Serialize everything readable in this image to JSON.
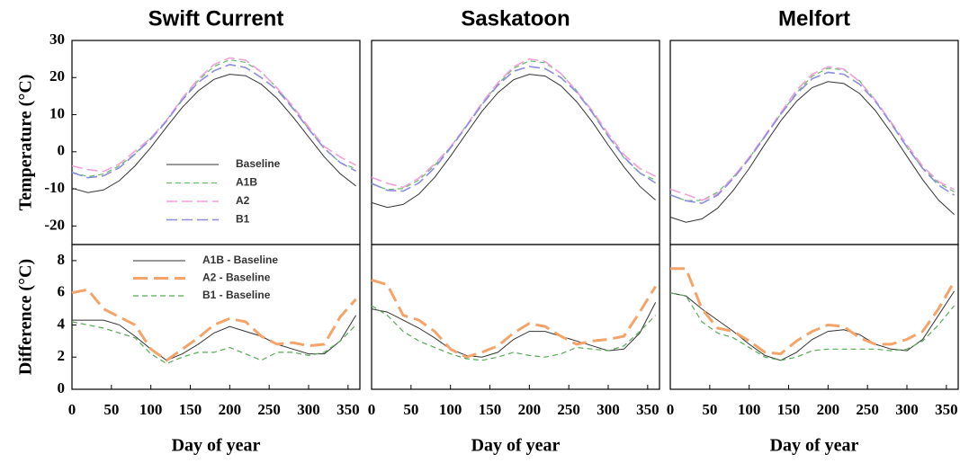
{
  "chart_data": [
    {
      "type": "line",
      "title": "Swift Current",
      "ylabel": "Temperature (°C)",
      "x": [
        0,
        20,
        40,
        60,
        80,
        100,
        120,
        140,
        160,
        180,
        200,
        220,
        240,
        260,
        280,
        300,
        320,
        340,
        360
      ],
      "xlim": [
        0,
        365
      ],
      "ylim": [
        -25,
        30
      ],
      "yticks": [
        -20,
        -10,
        0,
        10,
        20,
        30
      ],
      "legend": "lower-left",
      "series": [
        {
          "name": "Baseline",
          "color": "#333333",
          "style": "solid",
          "values": [
            -9.8,
            -11,
            -10.3,
            -7.8,
            -3.8,
            1.2,
            6.7,
            12,
            16.4,
            19.5,
            20.9,
            20.5,
            18.2,
            14.4,
            9.4,
            4,
            -1.4,
            -5.9,
            -9.2
          ]
        },
        {
          "name": "A1B",
          "color": "#66bb66",
          "style": "dashed",
          "values": [
            -5.5,
            -6.7,
            -6,
            -3.8,
            -0.5,
            3.7,
            8.5,
            14.2,
            19.2,
            23,
            24.8,
            24.1,
            21.5,
            17.2,
            11.9,
            6.2,
            0.8,
            -2.9,
            -4.6
          ]
        },
        {
          "name": "A2",
          "color": "#f0a0d8",
          "style": "long-dashed",
          "values": [
            -3.8,
            -4.8,
            -5.3,
            -3.3,
            0.2,
            3.7,
            8.5,
            14.5,
            19.6,
            23.5,
            25.3,
            24.7,
            21.5,
            17.2,
            12.3,
            6.7,
            1.4,
            -1.4,
            -3.6
          ]
        },
        {
          "name": "B1",
          "color": "#8c8ce0",
          "style": "long-dashed",
          "values": [
            -5.6,
            -7,
            -6.5,
            -4.3,
            -0.6,
            3.4,
            8.3,
            14,
            18.7,
            21.8,
            23.5,
            22.7,
            20,
            16.7,
            11.7,
            6.1,
            0.9,
            -2.9,
            -5.2
          ]
        }
      ]
    },
    {
      "type": "line",
      "title": "Saskatoon",
      "x": [
        0,
        20,
        40,
        60,
        80,
        100,
        120,
        140,
        160,
        180,
        200,
        220,
        240,
        260,
        280,
        300,
        320,
        340,
        360
      ],
      "xlim": [
        0,
        365
      ],
      "ylim": [
        -25,
        30
      ],
      "series": [
        {
          "color": "#333333",
          "style": "solid",
          "values": [
            -13.7,
            -15,
            -14.2,
            -11.4,
            -6.9,
            -1.2,
            4.9,
            10.9,
            15.9,
            19.4,
            20.9,
            20.4,
            17.8,
            13.5,
            8,
            1.8,
            -4.1,
            -9.3,
            -13
          ]
        },
        {
          "color": "#66bb66",
          "style": "dashed",
          "values": [
            -8.7,
            -10.2,
            -9.9,
            -7.6,
            -3.7,
            1.3,
            7,
            12.9,
            18.2,
            22.5,
            24.5,
            24,
            21.1,
            16.5,
            10.7,
            4.2,
            -1.6,
            -5.8,
            -7.6
          ]
        },
        {
          "color": "#f0a0d8",
          "style": "long-dashed",
          "values": [
            -6.9,
            -8.5,
            -9.6,
            -7.1,
            -3.3,
            1.3,
            6.9,
            13.2,
            18.6,
            22.9,
            25,
            24.3,
            21.1,
            16.3,
            11,
            4.9,
            -0.8,
            -4.5,
            -6.6
          ]
        },
        {
          "color": "#8c8ce0",
          "style": "long-dashed",
          "values": [
            -8.5,
            -10.4,
            -10.6,
            -8.4,
            -4.3,
            1,
            6.8,
            12.7,
            17.9,
            21.7,
            23,
            22.4,
            20,
            16.1,
            10.5,
            4.2,
            -1.4,
            -5.7,
            -8.4
          ]
        }
      ]
    },
    {
      "type": "line",
      "title": "Melfort",
      "x": [
        0,
        20,
        40,
        60,
        80,
        100,
        120,
        140,
        160,
        180,
        200,
        220,
        240,
        260,
        280,
        300,
        320,
        340,
        360
      ],
      "xlim": [
        0,
        365
      ],
      "ylim": [
        -25,
        30
      ],
      "series": [
        {
          "color": "#333333",
          "style": "solid",
          "values": [
            -17.6,
            -19,
            -18.1,
            -15.2,
            -10.4,
            -4.5,
            2.1,
            8.3,
            13.6,
            17.3,
            18.9,
            18.4,
            15.7,
            11.1,
            5.2,
            -1.2,
            -7.5,
            -13,
            -16.9
          ]
        },
        {
          "color": "#66bb66",
          "style": "dashed",
          "values": [
            -11.6,
            -13.2,
            -13.1,
            -10.9,
            -6.8,
            -1.7,
            4.2,
            10.1,
            15.9,
            20.4,
            22.5,
            22.1,
            19.1,
            13.9,
            7.7,
            1.2,
            -4.4,
            -8.4,
            -10.8
          ]
        },
        {
          "color": "#f0a0d8",
          "style": "long-dashed",
          "values": [
            -10.1,
            -11.5,
            -13.1,
            -11.4,
            -6.8,
            -1.5,
            4.4,
            10.5,
            16.6,
            20.9,
            22.9,
            22.3,
            18.9,
            13.9,
            8,
            1.9,
            -3.9,
            -8,
            -10.2
          ]
        },
        {
          "color": "#8c8ce0",
          "style": "long-dashed",
          "values": [
            -11.6,
            -13.2,
            -13.9,
            -11.7,
            -7.2,
            -1.9,
            4.1,
            10.1,
            15.6,
            19.7,
            21.4,
            20.9,
            18.2,
            13.6,
            7.6,
            1.3,
            -4.5,
            -9,
            -11.7
          ]
        }
      ]
    },
    {
      "type": "line",
      "ylabel": "Difference (°C)",
      "xlabel": "Day of year",
      "x": [
        0,
        20,
        40,
        60,
        80,
        100,
        120,
        140,
        160,
        180,
        200,
        220,
        240,
        260,
        280,
        300,
        320,
        340,
        360
      ],
      "xlim": [
        0,
        365
      ],
      "ylim": [
        0,
        9
      ],
      "xticks": [
        0,
        50,
        100,
        150,
        200,
        250,
        300,
        350
      ],
      "yticks": [
        0,
        2,
        4,
        6,
        8
      ],
      "legend": "upper-left",
      "series": [
        {
          "name": "A1B - Baseline",
          "color": "#333333",
          "style": "solid",
          "values": [
            4.3,
            4.3,
            4.3,
            4,
            3.3,
            2.5,
            1.8,
            2.2,
            2.8,
            3.5,
            3.9,
            3.6,
            3.3,
            2.8,
            2.5,
            2.2,
            2.2,
            3,
            4.6
          ]
        },
        {
          "name": "A2 - Baseline",
          "color": "#f4a46a",
          "style": "long-dashed-bold",
          "values": [
            6,
            6.2,
            5,
            4.5,
            4,
            2.5,
            1.8,
            2.5,
            3.2,
            4,
            4.4,
            4.2,
            3.3,
            2.8,
            2.9,
            2.7,
            2.8,
            4.5,
            5.6
          ]
        },
        {
          "name": "B1 - Baseline",
          "color": "#55aa55",
          "style": "dashed",
          "values": [
            4.2,
            4,
            3.8,
            3.5,
            3.2,
            2.2,
            1.6,
            2,
            2.3,
            2.3,
            2.6,
            2.2,
            1.8,
            2.3,
            2.3,
            2.1,
            2.3,
            3,
            4
          ]
        }
      ]
    },
    {
      "type": "line",
      "xlabel": "Day of year",
      "x": [
        0,
        20,
        40,
        60,
        80,
        100,
        120,
        140,
        160,
        180,
        200,
        220,
        240,
        260,
        280,
        300,
        320,
        340,
        360
      ],
      "xlim": [
        0,
        365
      ],
      "ylim": [
        0,
        9
      ],
      "xticks": [
        0,
        50,
        100,
        150,
        200,
        250,
        300,
        350
      ],
      "series": [
        {
          "color": "#333333",
          "style": "solid",
          "values": [
            5,
            4.8,
            4.3,
            3.8,
            3.2,
            2.5,
            2.1,
            2,
            2.3,
            3.1,
            3.6,
            3.6,
            3.3,
            3,
            2.7,
            2.4,
            2.5,
            3.5,
            5.4
          ]
        },
        {
          "color": "#f4a46a",
          "style": "long-dashed-bold",
          "values": [
            6.8,
            6.5,
            4.6,
            4.3,
            3.6,
            2.5,
            2,
            2.3,
            2.7,
            3.5,
            4.1,
            3.9,
            3.3,
            2.8,
            3,
            3.1,
            3.3,
            4.8,
            6.4
          ]
        },
        {
          "color": "#55aa55",
          "style": "dashed",
          "values": [
            5.2,
            4.6,
            3.6,
            3,
            2.6,
            2.2,
            1.9,
            1.8,
            2,
            2.3,
            2.1,
            2,
            2.2,
            2.6,
            2.5,
            2.4,
            2.7,
            3.6,
            4.6
          ]
        }
      ]
    },
    {
      "type": "line",
      "xlabel": "Day of year",
      "x": [
        0,
        20,
        40,
        60,
        80,
        100,
        120,
        140,
        160,
        180,
        200,
        220,
        240,
        260,
        280,
        300,
        320,
        340,
        360
      ],
      "xlim": [
        0,
        365
      ],
      "ylim": [
        0,
        9
      ],
      "xticks": [
        0,
        50,
        100,
        150,
        200,
        250,
        300,
        350
      ],
      "series": [
        {
          "color": "#333333",
          "style": "solid",
          "values": [
            6,
            5.8,
            5,
            4.3,
            3.6,
            2.8,
            2.1,
            1.8,
            2.3,
            3.1,
            3.6,
            3.7,
            3.4,
            2.8,
            2.5,
            2.4,
            3.1,
            4.6,
            6.1
          ]
        },
        {
          "color": "#f4a46a",
          "style": "long-dashed-bold",
          "values": [
            7.5,
            7.5,
            5,
            3.8,
            3.6,
            3,
            2.3,
            2.2,
            3,
            3.6,
            4,
            3.9,
            3.2,
            2.8,
            2.8,
            3.1,
            3.6,
            5,
            6.7
          ]
        },
        {
          "color": "#55aa55",
          "style": "dashed",
          "values": [
            6,
            5.8,
            4.2,
            3.5,
            3.2,
            2.6,
            2,
            1.8,
            2,
            2.4,
            2.5,
            2.5,
            2.5,
            2.5,
            2.4,
            2.5,
            3,
            4,
            5.2
          ]
        }
      ]
    }
  ]
}
